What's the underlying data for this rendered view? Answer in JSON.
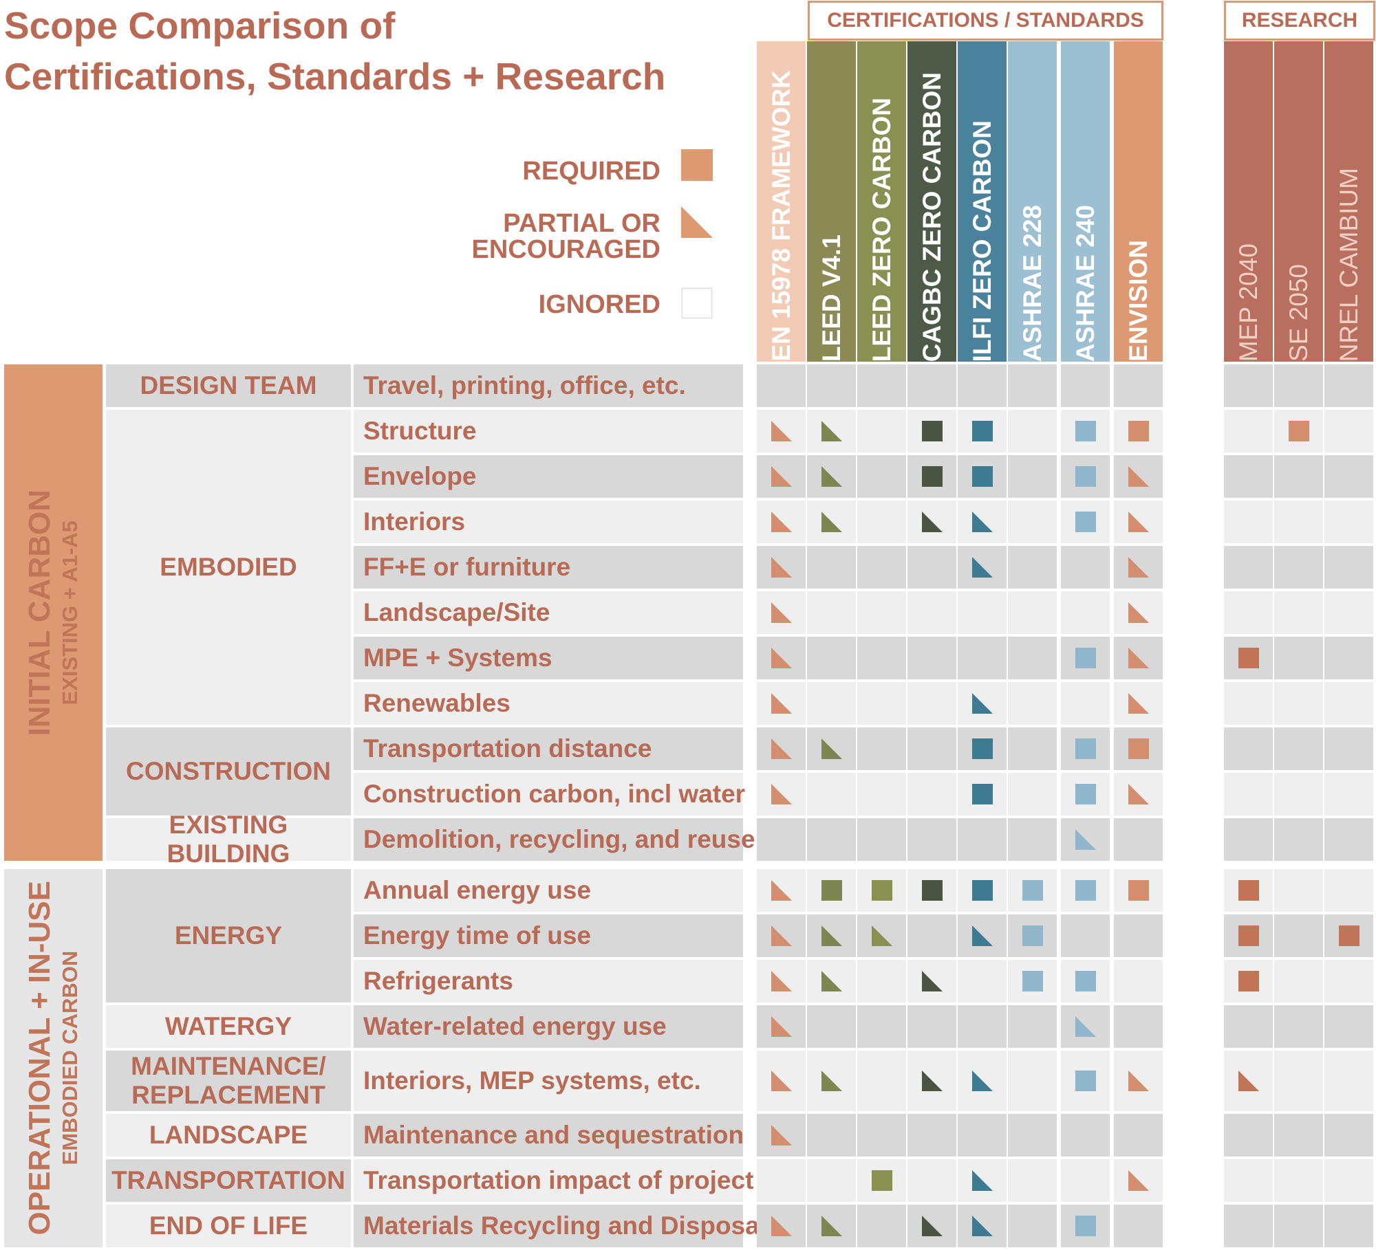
{
  "title": [
    "Scope Comparison of",
    "Certifications, Standards + Research"
  ],
  "legend": [
    {
      "label": [
        "REQUIRED"
      ],
      "mark": "R"
    },
    {
      "label": [
        "PARTIAL OR",
        "ENCOURAGED"
      ],
      "mark": "P"
    },
    {
      "label": [
        "IGNORED"
      ],
      "mark": "N"
    }
  ],
  "groups": {
    "certifications": "CERTIFICATIONS / STANDARDS",
    "research": "RESEARCH"
  },
  "columns": [
    {
      "label": "EN 15978 FRAMEWORK",
      "bg": "#f1cbb5",
      "mark": "#d28e6e",
      "text": "#ffffff"
    },
    {
      "label": "LEED V4.1",
      "bg": "#8b8a55",
      "mark": "#7d8650",
      "text": "#ffffff"
    },
    {
      "label": "LEED ZERO CARBON",
      "bg": "#8a8f52",
      "mark": "#8a8f52",
      "text": "#ffffff"
    },
    {
      "label": "CAGBC ZERO CARBON",
      "bg": "#4e5a48",
      "mark": "#4b5443",
      "text": "#ffffff"
    },
    {
      "label": "ILFI ZERO CARBON",
      "bg": "#4a819b",
      "mark": "#3f7a93",
      "text": "#ffffff"
    },
    {
      "label": "ASHRAE 228",
      "bg": "#9cbfd1",
      "mark": "#8fb6cb",
      "text": "#ffffff"
    },
    {
      "label": "ASHRAE 240",
      "bg": "#9cbfd1",
      "mark": "#8fb6cb",
      "text": "#ffffff"
    },
    {
      "label": "ENVISION",
      "bg": "#dd9a72",
      "mark": "#d28e6e",
      "text": "#ffffff"
    },
    {
      "label": "MEP 2040",
      "bg": "#b86f5f",
      "mark": "#c07458",
      "text": "#f2d0c3"
    },
    {
      "label": "SE 2050",
      "bg": "#b86f5f",
      "mark": "#d28e6e",
      "text": "#f2d0c3"
    },
    {
      "label": "NREL CAMBIUM",
      "bg": "#b86f5f",
      "mark": "#c07458",
      "text": "#f2d0c3"
    }
  ],
  "sections": [
    {
      "label": "INITIAL CARBON",
      "sub": "EXISTING + A1-A5",
      "bg": "#dd9a72"
    },
    {
      "label": "OPERATIONAL + IN-USE",
      "sub": "EMBODIED  CARBON",
      "bg": "#e6e6e6"
    }
  ],
  "subgroups": [
    {
      "label": [
        "DESIGN TEAM"
      ]
    },
    {
      "label": [
        "EMBODIED"
      ]
    },
    {
      "label": [
        "CONSTRUCTION"
      ]
    },
    {
      "label": [
        "EXISTING BUILDING"
      ]
    },
    {
      "label": [
        "ENERGY"
      ]
    },
    {
      "label": [
        "WATERGY"
      ]
    },
    {
      "label": [
        "MAINTENANCE/",
        "REPLACEMENT"
      ]
    },
    {
      "label": [
        "LANDSCAPE"
      ]
    },
    {
      "label": [
        "TRANSPORTATION"
      ]
    },
    {
      "label": [
        "END OF LIFE"
      ]
    }
  ],
  "rows": [
    {
      "label": "Travel, printing, office, etc.",
      "marks": "NNNNNNNNNNN"
    },
    {
      "label": "Structure",
      "marks": "PPNRRNRRNRN"
    },
    {
      "label": "Envelope",
      "marks": "PPNRRNRPNNN"
    },
    {
      "label": "Interiors",
      "marks": "PPNPPNRPNNN"
    },
    {
      "label": "FF+E or furniture",
      "marks": "PNNNPNNPNNN"
    },
    {
      "label": "Landscape/Site",
      "marks": "PNNNNNNPNNN"
    },
    {
      "label": "MPE + Systems",
      "marks": "PNNNNNRPRNN"
    },
    {
      "label": "Renewables",
      "marks": "PNNNPNNPNNN"
    },
    {
      "label": "Transportation distance",
      "marks": "PPNNRNRRNNN"
    },
    {
      "label": "Construction carbon, incl water",
      "marks": "PNNNRNRPNNN"
    },
    {
      "label": "Demolition, recycling, and reuse",
      "marks": "NNNNNNPNNNN"
    },
    {
      "label": "Annual energy use",
      "marks": "PRRRRRRRRNN"
    },
    {
      "label": "Energy time of use",
      "marks": "PPPNPRNNRNR"
    },
    {
      "label": "Refrigerants",
      "marks": "PPNPNRRNRNN"
    },
    {
      "label": "Water-related energy use",
      "marks": "PNNNNNPNNNN"
    },
    {
      "label": "Interiors, MEP systems, etc.",
      "marks": "PPNPPNRPPNN"
    },
    {
      "label": "Maintenance and sequestration",
      "marks": "PNNNNNNNNNN"
    },
    {
      "label": "Transportation impact of project",
      "marks": "NNRNPNNPNNN"
    },
    {
      "label": "Materials Recycling and Disposal",
      "marks": "PPNPPNRNNNN"
    }
  ],
  "colors": {
    "shade_dark": "#d8d8d8",
    "shade_light": "#efefef",
    "text": "#b86a55",
    "accent": "#d79a74"
  }
}
